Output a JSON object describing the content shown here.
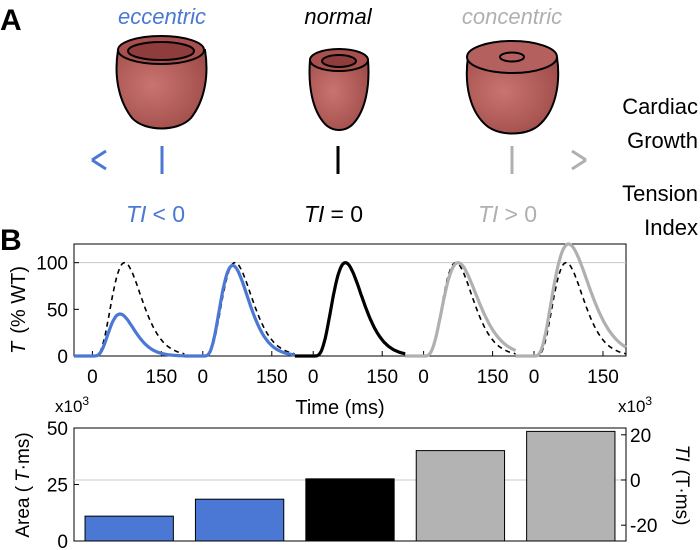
{
  "colors": {
    "eccentric": "#4a78d4",
    "normal": "#000000",
    "concentric": "#b0b0b0",
    "heart_fill": "#b4605f",
    "heart_inner": "#8f3c3c",
    "bar_eccentric": "#4a78d4",
    "bar_normal": "#000000",
    "bar_concentric": "#b3b3b3",
    "grid": "#c8c8c8"
  },
  "panel_a": {
    "label": "A",
    "categories": [
      {
        "label": "eccentric",
        "ti_sym": "TI",
        "ti_rel": "< 0"
      },
      {
        "label": "normal",
        "ti_sym": "TI",
        "ti_rel": "= 0"
      },
      {
        "label": "concentric",
        "ti_sym": "TI",
        "ti_rel": "> 0"
      }
    ],
    "right_label_1": [
      "Cardiac",
      "Growth"
    ],
    "right_label_2": [
      "Tension",
      "Index"
    ]
  },
  "panel_b": {
    "label": "B"
  },
  "chart_data": [
    {
      "type": "line",
      "description_key": "tension_traces",
      "ylabel_sym": "T",
      "ylabel_unit": "(% WT)",
      "xlabel": "Time (ms)",
      "ylim": [
        0,
        120
      ],
      "yticks": [
        0,
        50,
        100
      ],
      "xticks": [
        0,
        150
      ],
      "xlim_each": [
        -40,
        200
      ],
      "grid_y": [
        100
      ],
      "reference_series": {
        "name": "",
        "peak": 100,
        "peak_time_ms": 70,
        "width_ms": 30,
        "style": "dashed"
      },
      "series": [
        {
          "color_key": "eccentric",
          "peak": 45,
          "peak_time_ms": 60,
          "width_ms": 25
        },
        {
          "color_key": "eccentric",
          "peak": 97,
          "peak_time_ms": 65,
          "width_ms": 28
        },
        {
          "color_key": "normal",
          "peak": 100,
          "peak_time_ms": 70,
          "width_ms": 30
        },
        {
          "color_key": "concentric",
          "peak": 100,
          "peak_time_ms": 75,
          "width_ms": 36
        },
        {
          "color_key": "concentric",
          "peak": 120,
          "peak_time_ms": 75,
          "width_ms": 40
        }
      ]
    },
    {
      "type": "bar",
      "description_key": "tension_area",
      "ylabel_left": "Area (",
      "ylabel_left_sym": "T",
      "ylabel_left_unit": "·ms)",
      "ylabel_right_sym": "TI",
      "ylabel_right_unit": "(T·ms)",
      "left_multiplier": "x10",
      "left_multiplier_exp": "3",
      "right_multiplier": "x10",
      "right_multiplier_exp": "3",
      "ylim_left": [
        0,
        50
      ],
      "yticks_left": [
        0,
        25,
        50
      ],
      "ylim_right": [
        -27,
        23
      ],
      "yticks_right": [
        -20,
        0,
        20
      ],
      "grid_y_left": [
        27
      ],
      "values": [
        11,
        18.5,
        27.5,
        40,
        48.5
      ],
      "color_keys": [
        "bar_eccentric",
        "bar_eccentric",
        "bar_normal",
        "bar_concentric",
        "bar_concentric"
      ]
    }
  ]
}
